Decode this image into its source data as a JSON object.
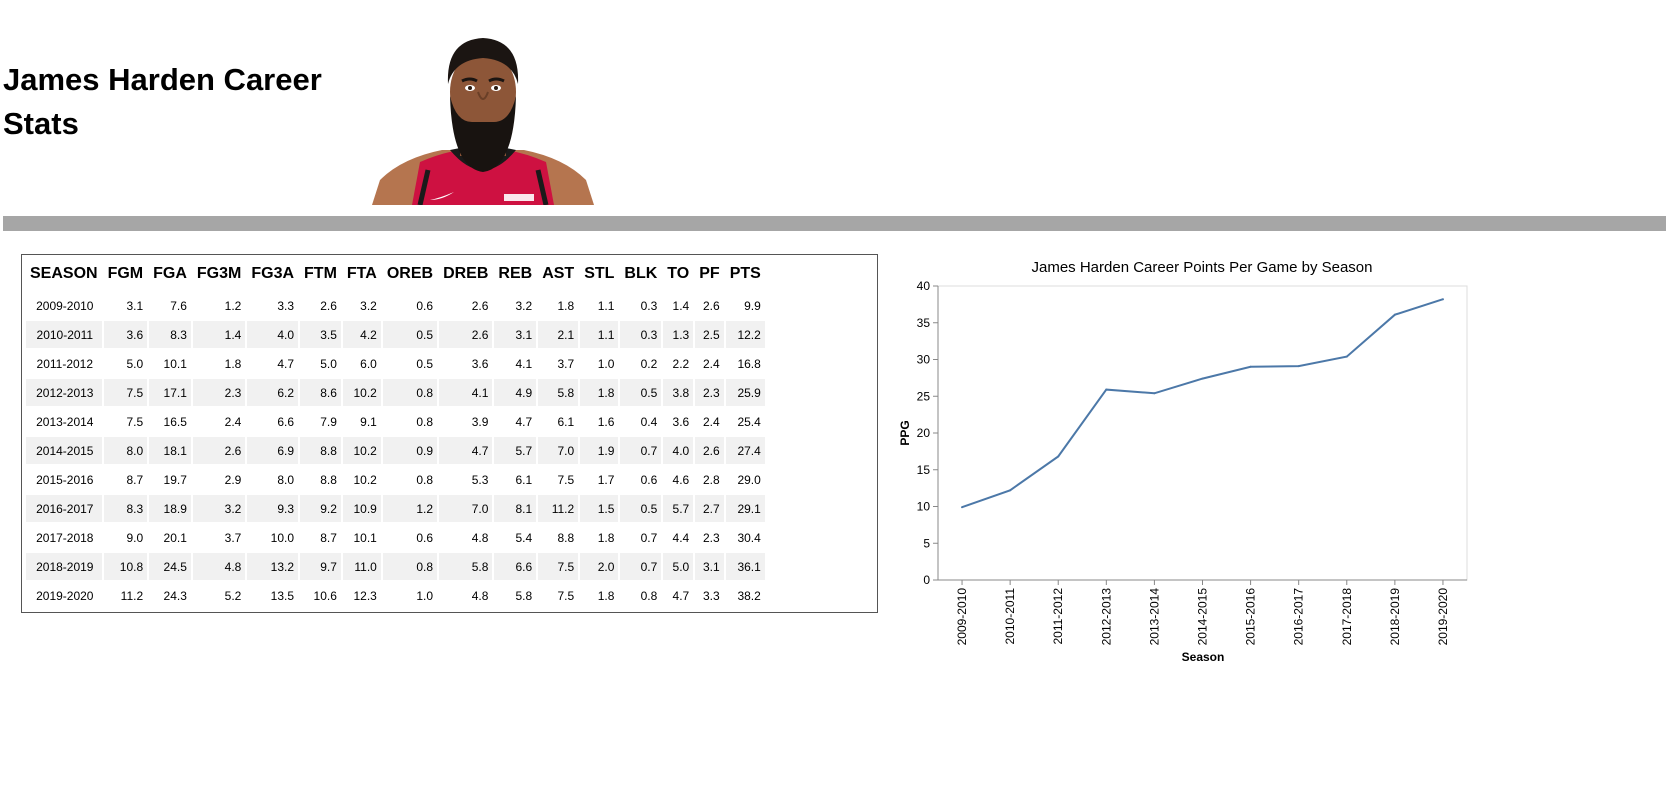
{
  "page": {
    "title": "James Harden Career Stats"
  },
  "table": {
    "headers": [
      "SEASON",
      "FGM",
      "FGA",
      "FG3M",
      "FG3A",
      "FTM",
      "FTA",
      "OREB",
      "DREB",
      "REB",
      "AST",
      "STL",
      "BLK",
      "TO",
      "PF",
      "PTS"
    ],
    "rows": [
      [
        "2009-2010",
        "3.1",
        "7.6",
        "1.2",
        "3.3",
        "2.6",
        "3.2",
        "0.6",
        "2.6",
        "3.2",
        "1.8",
        "1.1",
        "0.3",
        "1.4",
        "2.6",
        "9.9"
      ],
      [
        "2010-2011",
        "3.6",
        "8.3",
        "1.4",
        "4.0",
        "3.5",
        "4.2",
        "0.5",
        "2.6",
        "3.1",
        "2.1",
        "1.1",
        "0.3",
        "1.3",
        "2.5",
        "12.2"
      ],
      [
        "2011-2012",
        "5.0",
        "10.1",
        "1.8",
        "4.7",
        "5.0",
        "6.0",
        "0.5",
        "3.6",
        "4.1",
        "3.7",
        "1.0",
        "0.2",
        "2.2",
        "2.4",
        "16.8"
      ],
      [
        "2012-2013",
        "7.5",
        "17.1",
        "2.3",
        "6.2",
        "8.6",
        "10.2",
        "0.8",
        "4.1",
        "4.9",
        "5.8",
        "1.8",
        "0.5",
        "3.8",
        "2.3",
        "25.9"
      ],
      [
        "2013-2014",
        "7.5",
        "16.5",
        "2.4",
        "6.6",
        "7.9",
        "9.1",
        "0.8",
        "3.9",
        "4.7",
        "6.1",
        "1.6",
        "0.4",
        "3.6",
        "2.4",
        "25.4"
      ],
      [
        "2014-2015",
        "8.0",
        "18.1",
        "2.6",
        "6.9",
        "8.8",
        "10.2",
        "0.9",
        "4.7",
        "5.7",
        "7.0",
        "1.9",
        "0.7",
        "4.0",
        "2.6",
        "27.4"
      ],
      [
        "2015-2016",
        "8.7",
        "19.7",
        "2.9",
        "8.0",
        "8.8",
        "10.2",
        "0.8",
        "5.3",
        "6.1",
        "7.5",
        "1.7",
        "0.6",
        "4.6",
        "2.8",
        "29.0"
      ],
      [
        "2016-2017",
        "8.3",
        "18.9",
        "3.2",
        "9.3",
        "9.2",
        "10.9",
        "1.2",
        "7.0",
        "8.1",
        "11.2",
        "1.5",
        "0.5",
        "5.7",
        "2.7",
        "29.1"
      ],
      [
        "2017-2018",
        "9.0",
        "20.1",
        "3.7",
        "10.0",
        "8.7",
        "10.1",
        "0.6",
        "4.8",
        "5.4",
        "8.8",
        "1.8",
        "0.7",
        "4.4",
        "2.3",
        "30.4"
      ],
      [
        "2018-2019",
        "10.8",
        "24.5",
        "4.8",
        "13.2",
        "9.7",
        "11.0",
        "0.8",
        "5.8",
        "6.6",
        "7.5",
        "2.0",
        "0.7",
        "5.0",
        "3.1",
        "36.1"
      ],
      [
        "2019-2020",
        "11.2",
        "24.3",
        "5.2",
        "13.5",
        "10.6",
        "12.3",
        "1.0",
        "4.8",
        "5.8",
        "7.5",
        "1.8",
        "0.8",
        "4.7",
        "3.3",
        "38.2"
      ]
    ]
  },
  "chart_data": {
    "type": "line",
    "title": "James Harden Career Points Per Game by Season",
    "xlabel": "Season",
    "ylabel": "PPG",
    "categories": [
      "2009-2010",
      "2010-2011",
      "2011-2012",
      "2012-2013",
      "2013-2014",
      "2014-2015",
      "2015-2016",
      "2016-2017",
      "2017-2018",
      "2018-2019",
      "2019-2020"
    ],
    "series": [
      {
        "values": [
          9.9,
          12.2,
          16.8,
          25.9,
          25.4,
          27.4,
          29.0,
          29.1,
          30.4,
          36.1,
          38.2
        ]
      }
    ],
    "ylim": [
      0,
      40
    ],
    "yticks": [
      0,
      5,
      10,
      15,
      20,
      25,
      30,
      35,
      40
    ],
    "grid": false,
    "line_color": "#4c78a8"
  }
}
